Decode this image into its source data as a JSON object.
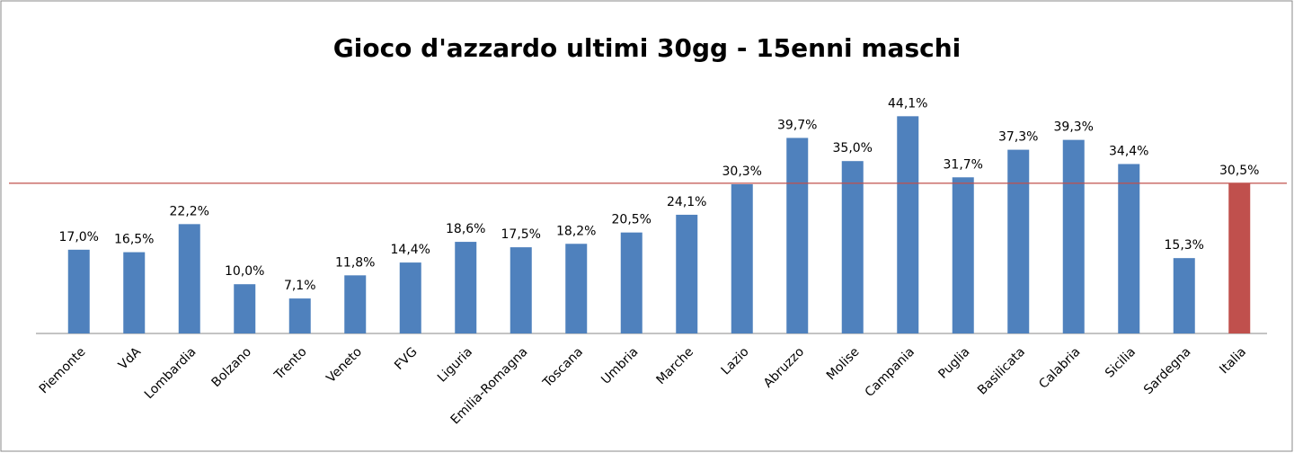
{
  "chart_data": {
    "type": "bar",
    "title": "Gioco d'azzardo ultimi 30gg - 15enni maschi",
    "categories": [
      "Piemonte",
      "VdA",
      "Lombardia",
      "Bolzano",
      "Trento",
      "Veneto",
      "FVG",
      "Liguria",
      "Emilia-Romagna",
      "Toscana",
      "Umbria",
      "Marche",
      "Lazio",
      "Abruzzo",
      "Molise",
      "Campania",
      "Puglia",
      "Basilicata",
      "Calabria",
      "Sicilia",
      "Sardegna",
      "Italia"
    ],
    "values": [
      17.0,
      16.5,
      22.2,
      10.0,
      7.1,
      11.8,
      14.4,
      18.6,
      17.5,
      18.2,
      20.5,
      24.1,
      30.3,
      39.7,
      35.0,
      44.1,
      31.7,
      37.3,
      39.3,
      34.4,
      15.3,
      30.5
    ],
    "value_labels": [
      "17,0%",
      "16,5%",
      "22,2%",
      "10,0%",
      "7,1%",
      "11,8%",
      "14,4%",
      "18,6%",
      "17,5%",
      "18,2%",
      "20,5%",
      "24,1%",
      "30,3%",
      "39,7%",
      "35,0%",
      "44,1%",
      "31,7%",
      "37,3%",
      "39,3%",
      "34,4%",
      "15,3%",
      "30,5%"
    ],
    "colors": [
      "#4f81bd",
      "#4f81bd",
      "#4f81bd",
      "#4f81bd",
      "#4f81bd",
      "#4f81bd",
      "#4f81bd",
      "#4f81bd",
      "#4f81bd",
      "#4f81bd",
      "#4f81bd",
      "#4f81bd",
      "#4f81bd",
      "#4f81bd",
      "#4f81bd",
      "#4f81bd",
      "#4f81bd",
      "#4f81bd",
      "#4f81bd",
      "#4f81bd",
      "#4f81bd",
      "#c0504d"
    ],
    "ylim": [
      0,
      50
    ]
  }
}
